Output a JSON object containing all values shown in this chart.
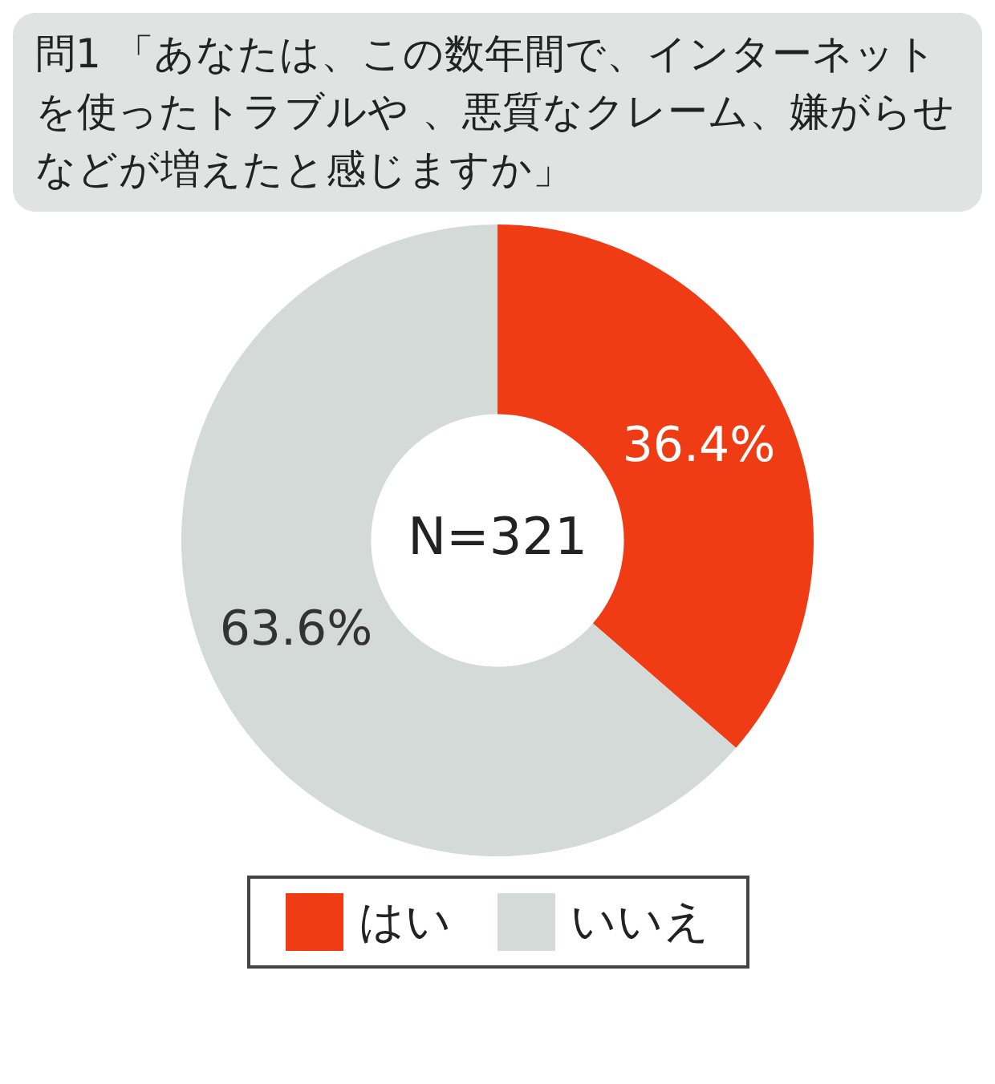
{
  "chart_data": {
    "type": "donut",
    "title": "問1 「あなたは、この数年間で、インターネットを使ったトラブルや 、悪質なクレーム、嫌がらせなどが増えたと感じますか」",
    "categories": [
      "はい",
      "いいえ"
    ],
    "values": [
      36.4,
      63.6
    ],
    "colors": [
      "#f03c14",
      "#d4dad7"
    ],
    "value_labels": [
      "36.4%",
      "63.6%"
    ],
    "annotations": [
      "N=321"
    ],
    "legend": "bottom"
  }
}
